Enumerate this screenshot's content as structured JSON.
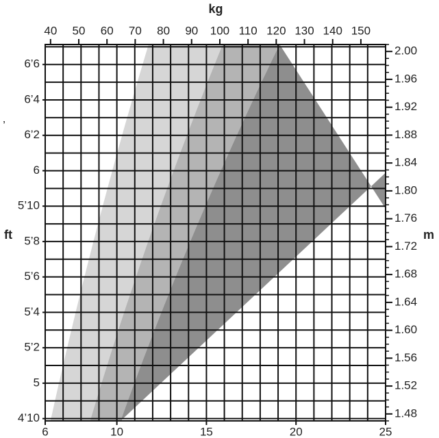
{
  "chart_data": {
    "type": "zones",
    "x_label": "kg",
    "y_label_left": "ft",
    "y_label_right": "m",
    "annotation": "’",
    "xlim": [
      6,
      25
    ],
    "xticks": [
      6,
      10,
      15,
      20,
      25
    ],
    "xgrid_step": 1,
    "x2lim": [
      38.1,
      158.76
    ],
    "x2ticks": [
      40,
      50,
      60,
      70,
      80,
      90,
      100,
      110,
      120,
      130,
      140,
      150
    ],
    "ylim": [
      1.47,
      2.01
    ],
    "yticks": [
      {
        "value": 1.48,
        "label": "1.48"
      },
      {
        "value": 1.52,
        "label": "1.52"
      },
      {
        "value": 1.56,
        "label": "1.56"
      },
      {
        "value": 1.6,
        "label": "1.60"
      },
      {
        "value": 1.64,
        "label": "1.64"
      },
      {
        "value": 1.68,
        "label": "1.68"
      },
      {
        "value": 1.72,
        "label": "1.72"
      },
      {
        "value": 1.76,
        "label": "1.76"
      },
      {
        "value": 1.8,
        "label": "1.80"
      },
      {
        "value": 1.84,
        "label": "1.84"
      },
      {
        "value": 1.88,
        "label": "1.88"
      },
      {
        "value": 1.92,
        "label": "1.92"
      },
      {
        "value": 1.96,
        "label": "1.96"
      },
      {
        "value": 2,
        "label": "2.00"
      }
    ],
    "yminor_step": 0.01,
    "y2lim": [
      57.87,
      79.13
    ],
    "y2ticks": [
      {
        "value": 58,
        "label": "4’10"
      },
      {
        "value": 60,
        "label": "5"
      },
      {
        "value": 62,
        "label": "5’2"
      },
      {
        "value": 64,
        "label": "5’4"
      },
      {
        "value": 66,
        "label": "5’6"
      },
      {
        "value": 68,
        "label": "5’8"
      },
      {
        "value": 70,
        "label": "5’10"
      },
      {
        "value": 72,
        "label": "6"
      },
      {
        "value": 74,
        "label": "6’2"
      },
      {
        "value": 76,
        "label": "6’4"
      },
      {
        "value": 78,
        "label": "6’6"
      }
    ],
    "y2grid_step": 1,
    "boundaries": [
      18.5,
      25,
      30
    ],
    "zone_colors": [
      "#ffffff",
      "#d6d6d6",
      "#b4b4b4",
      "#8e8e8e"
    ],
    "grid": true
  }
}
